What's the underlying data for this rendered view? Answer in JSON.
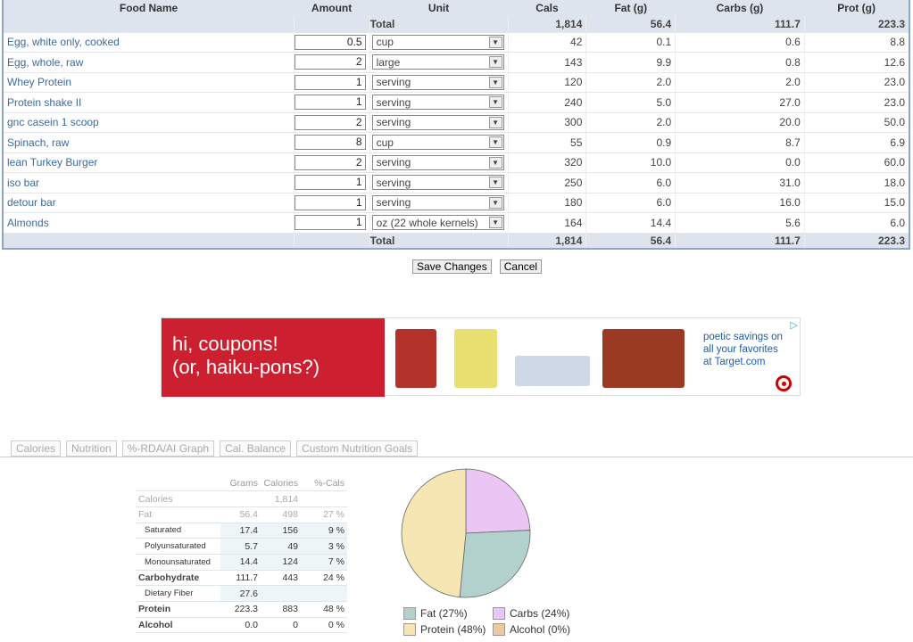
{
  "table": {
    "headers": [
      "Food Name",
      "Amount",
      "Unit",
      "Cals",
      "Fat (g)",
      "Carbs (g)",
      "Prot (g)"
    ],
    "total_label": "Total",
    "totals": [
      "1,814",
      "56.4",
      "111.7",
      "223.3"
    ],
    "rows": [
      {
        "name": "Egg, white only, cooked",
        "amount": "0.5",
        "unit": "cup",
        "cals": "42",
        "fat": "0.1",
        "carbs": "0.6",
        "prot": "8.8"
      },
      {
        "name": "Egg, whole, raw",
        "amount": "2",
        "unit": "large",
        "cals": "143",
        "fat": "9.9",
        "carbs": "0.8",
        "prot": "12.6"
      },
      {
        "name": "Whey Protein",
        "amount": "1",
        "unit": "serving",
        "cals": "120",
        "fat": "2.0",
        "carbs": "2.0",
        "prot": "23.0"
      },
      {
        "name": "Protein shake II",
        "amount": "1",
        "unit": "serving",
        "cals": "240",
        "fat": "5.0",
        "carbs": "27.0",
        "prot": "23.0"
      },
      {
        "name": "gnc casein 1 scoop",
        "amount": "2",
        "unit": "serving",
        "cals": "300",
        "fat": "2.0",
        "carbs": "20.0",
        "prot": "50.0"
      },
      {
        "name": "Spinach, raw",
        "amount": "8",
        "unit": "cup",
        "cals": "55",
        "fat": "0.9",
        "carbs": "8.7",
        "prot": "6.9"
      },
      {
        "name": "lean Turkey Burger",
        "amount": "2",
        "unit": "serving",
        "cals": "320",
        "fat": "10.0",
        "carbs": "0.0",
        "prot": "60.0"
      },
      {
        "name": "iso bar",
        "amount": "1",
        "unit": "serving",
        "cals": "250",
        "fat": "6.0",
        "carbs": "31.0",
        "prot": "18.0"
      },
      {
        "name": "detour bar",
        "amount": "1",
        "unit": "serving",
        "cals": "180",
        "fat": "6.0",
        "carbs": "16.0",
        "prot": "15.0"
      },
      {
        "name": "Almonds",
        "amount": "1",
        "unit": "oz (22 whole kernels)",
        "cals": "164",
        "fat": "14.4",
        "carbs": "5.6",
        "prot": "6.0"
      }
    ]
  },
  "buttons": {
    "save": "Save Changes",
    "cancel": "Cancel"
  },
  "ad": {
    "headline1": "hi, coupons!",
    "headline2": "(or, haiku-pons?)",
    "copy1": "poetic savings on",
    "copy2": "all your favorites",
    "copy3": "at Target.com"
  },
  "tabs": [
    "Calories",
    "Nutrition",
    "%-RDA/AI Graph",
    "Cal. Balance",
    "Custom Nutrition Goals"
  ],
  "nutrition": {
    "headers": [
      "Grams",
      "Calories",
      "%-Cals"
    ],
    "rows": [
      {
        "label": "Calories",
        "grams": "",
        "cals": "1,814",
        "pct": "",
        "style": "dim"
      },
      {
        "label": "Fat",
        "grams": "56.4",
        "cals": "498",
        "pct": "27 %",
        "style": "dim"
      },
      {
        "label": "Saturated",
        "grams": "17.4",
        "cals": "156",
        "pct": "9 %",
        "style": "sub"
      },
      {
        "label": "Polyunsaturated",
        "grams": "5.7",
        "cals": "49",
        "pct": "3 %",
        "style": "sub"
      },
      {
        "label": "Monounsaturated",
        "grams": "14.4",
        "cals": "124",
        "pct": "7 %",
        "style": "sub"
      },
      {
        "label": "Carbohydrate",
        "grams": "111.7",
        "cals": "443",
        "pct": "24 %",
        "style": "bold"
      },
      {
        "label": "Dietary Fiber",
        "grams": "27.6",
        "cals": "",
        "pct": "",
        "style": "sub"
      },
      {
        "label": "Protein",
        "grams": "223.3",
        "cals": "883",
        "pct": "48 %",
        "style": "bold"
      },
      {
        "label": "Alcohol",
        "grams": "0.0",
        "cals": "0",
        "pct": "0 %",
        "style": "bold"
      }
    ]
  },
  "pie": {
    "slices": [
      {
        "name": "Carbs",
        "pct": 24,
        "label": "Carbs  (24%)",
        "color": "#ebc6f5"
      },
      {
        "name": "Alcohol",
        "pct": 0,
        "label": "Alcohol  (0%)",
        "color": "#f0c8a0"
      },
      {
        "name": "Fat",
        "pct": 27,
        "label": "Fat  (27%)",
        "color": "#b3d1cc"
      },
      {
        "name": "Protein",
        "pct": 48,
        "label": "Protein  (48%)",
        "color": "#f5e6b4"
      }
    ]
  }
}
